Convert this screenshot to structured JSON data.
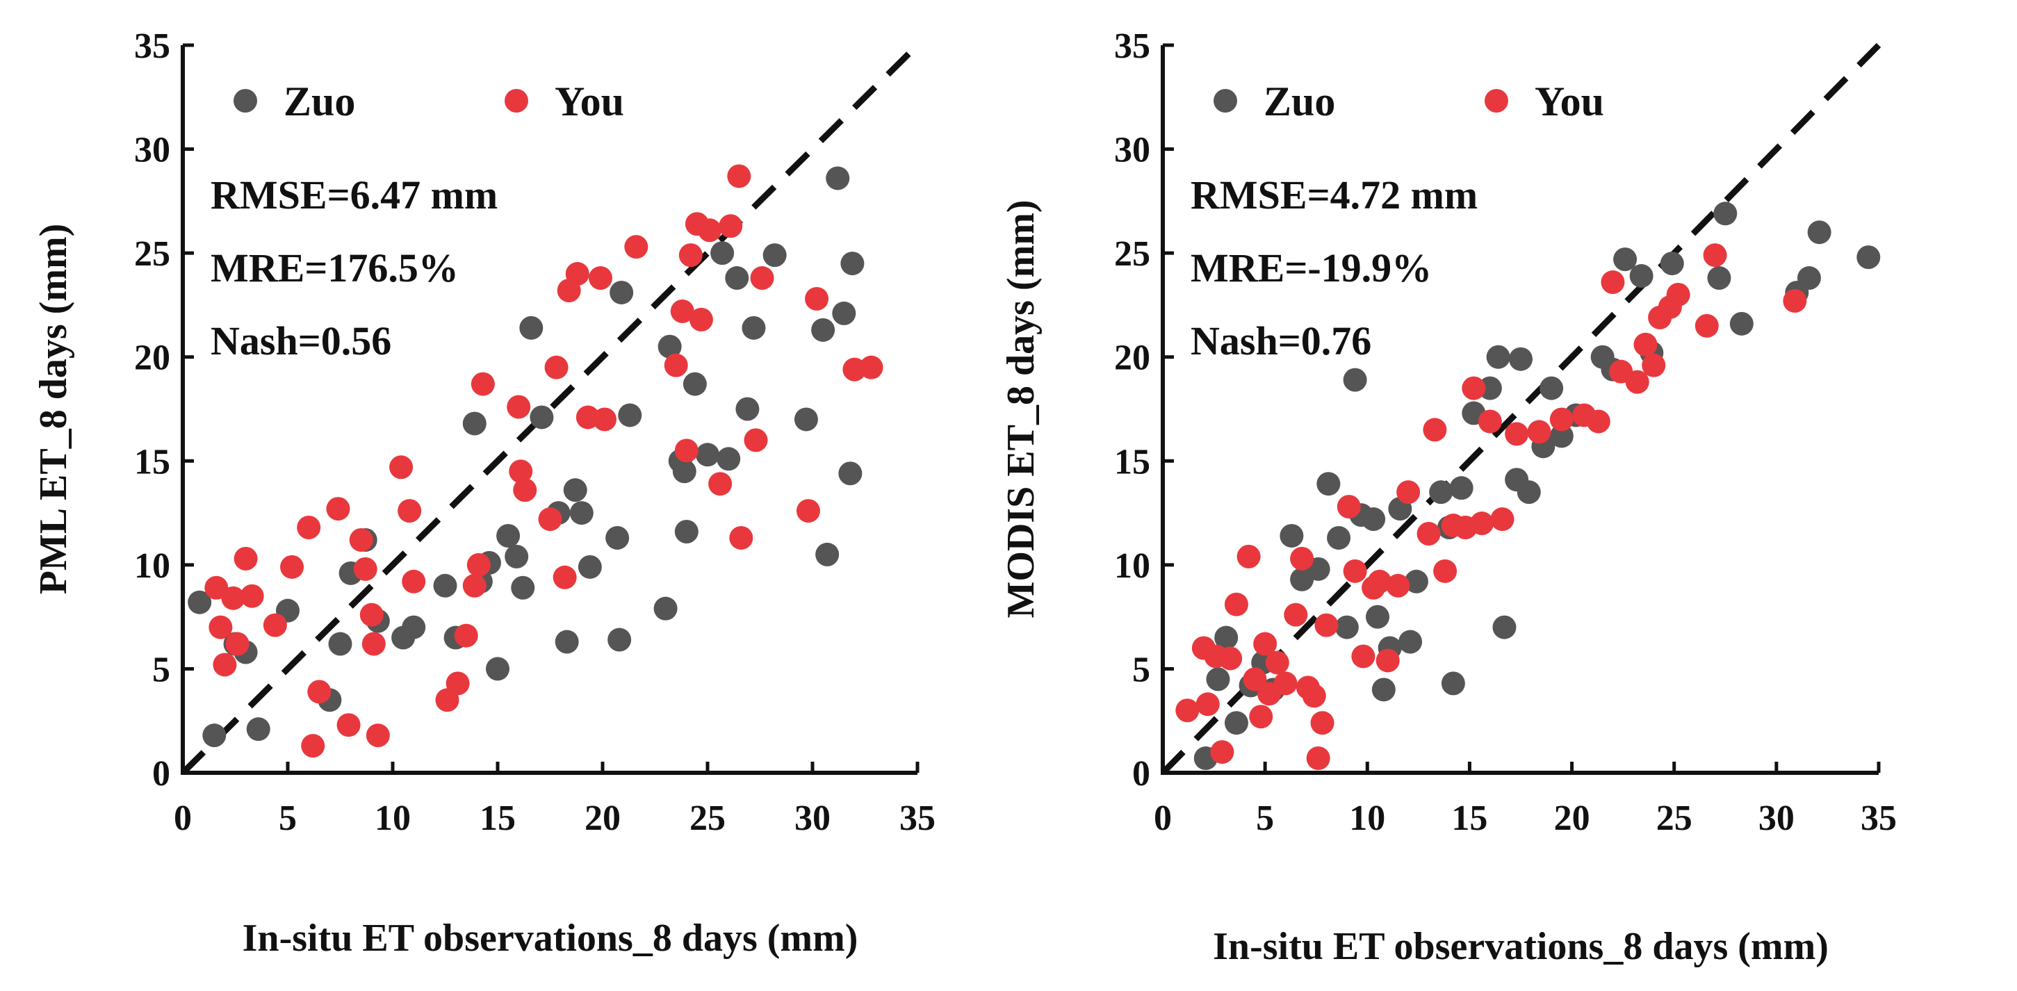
{
  "colors": {
    "zuo": "#555555",
    "you": "#e8383d",
    "axis": "#111111",
    "one_to_one": "#111111"
  },
  "chart_data": [
    {
      "type": "scatter",
      "xlabel": "In-situ ET observations_8 days (mm)",
      "ylabel": "PML ET_8 days  (mm)",
      "xlim": [
        0,
        35
      ],
      "ylim": [
        0,
        35
      ],
      "xticks": [
        0,
        5,
        10,
        15,
        20,
        25,
        30,
        35
      ],
      "yticks": [
        0,
        5,
        10,
        15,
        20,
        25,
        30,
        35
      ],
      "one_to_one_line": true,
      "legend": [
        "Zuo",
        "You"
      ],
      "stats": [
        "RMSE=6.47 mm",
        "MRE=176.5%",
        "Nash=0.56"
      ],
      "series": [
        {
          "name": "Zuo",
          "x": [
            0.8,
            1.5,
            2.5,
            3.0,
            3.6,
            5.0,
            7.0,
            7.5,
            8.0,
            8.7,
            9.3,
            10.5,
            11.0,
            12.5,
            13.0,
            13.9,
            14.2,
            14.6,
            15.0,
            15.5,
            15.9,
            16.2,
            16.6,
            17.1,
            17.9,
            18.3,
            18.7,
            19.0,
            19.4,
            20.7,
            20.8,
            20.9,
            21.3,
            23.0,
            23.2,
            23.7,
            23.9,
            24.0,
            24.4,
            25.0,
            25.7,
            26.0,
            26.4,
            26.9,
            27.2,
            28.2,
            29.7,
            30.5,
            30.7,
            31.2,
            31.5,
            31.8,
            31.9
          ],
          "y": [
            8.2,
            1.8,
            6.2,
            5.8,
            2.1,
            7.8,
            3.5,
            6.2,
            9.6,
            11.2,
            7.3,
            6.5,
            7.0,
            9.0,
            6.5,
            16.8,
            9.2,
            10.1,
            5.0,
            11.4,
            10.4,
            8.9,
            21.4,
            17.1,
            12.5,
            6.3,
            13.6,
            12.5,
            9.9,
            11.3,
            6.4,
            23.1,
            17.2,
            7.9,
            20.5,
            15.0,
            14.5,
            11.6,
            18.7,
            15.3,
            25.0,
            15.1,
            23.8,
            17.5,
            21.4,
            24.9,
            17.0,
            21.3,
            10.5,
            28.6,
            22.1,
            14.4,
            24.5
          ]
        },
        {
          "name": "You",
          "x": [
            1.6,
            1.8,
            2.0,
            2.4,
            2.6,
            3.0,
            3.3,
            4.4,
            5.2,
            6.0,
            6.2,
            6.5,
            7.4,
            7.9,
            8.5,
            8.7,
            9.0,
            9.1,
            9.3,
            10.4,
            10.8,
            11.0,
            12.6,
            13.1,
            13.5,
            13.9,
            14.1,
            14.3,
            16.0,
            16.1,
            16.3,
            17.5,
            17.8,
            18.2,
            18.4,
            18.8,
            19.3,
            19.9,
            20.1,
            21.6,
            23.5,
            23.8,
            24.0,
            24.2,
            24.5,
            24.7,
            25.1,
            25.6,
            26.1,
            26.5,
            26.6,
            27.3,
            27.6,
            29.8,
            30.2,
            32.0,
            32.8
          ],
          "y": [
            8.9,
            7.0,
            5.2,
            8.4,
            6.2,
            10.3,
            8.5,
            7.1,
            9.9,
            11.8,
            1.3,
            3.9,
            12.7,
            2.3,
            11.2,
            9.8,
            7.6,
            6.2,
            1.8,
            14.7,
            12.6,
            9.2,
            3.5,
            4.3,
            6.6,
            9.0,
            10.0,
            18.7,
            17.6,
            14.5,
            13.6,
            12.2,
            19.5,
            9.4,
            23.2,
            24.0,
            17.1,
            23.8,
            17.0,
            25.3,
            19.6,
            22.2,
            15.5,
            24.9,
            26.4,
            21.8,
            26.1,
            13.9,
            26.3,
            28.7,
            11.3,
            16.0,
            23.8,
            12.6,
            22.8,
            19.4,
            19.5
          ]
        }
      ]
    },
    {
      "type": "scatter",
      "xlabel": "In-situ ET observations_8 days (mm)",
      "ylabel": "MODIS ET_8 days (mm)",
      "xlim": [
        0,
        35
      ],
      "ylim": [
        0,
        35
      ],
      "xticks": [
        0,
        5,
        10,
        15,
        20,
        25,
        30,
        35
      ],
      "yticks": [
        0,
        5,
        10,
        15,
        20,
        25,
        30,
        35
      ],
      "one_to_one_line": true,
      "legend": [
        "Zuo",
        "You"
      ],
      "stats": [
        "RMSE=4.72 mm",
        "MRE=-19.9%",
        "Nash=0.76"
      ],
      "series": [
        {
          "name": "Zuo",
          "x": [
            2.1,
            2.7,
            3.1,
            3.6,
            4.3,
            4.9,
            5.4,
            6.3,
            6.8,
            7.6,
            8.1,
            8.6,
            9.0,
            9.4,
            9.7,
            10.3,
            10.5,
            10.8,
            11.1,
            11.6,
            12.1,
            12.4,
            13.6,
            14.0,
            14.2,
            14.6,
            15.2,
            16.0,
            16.4,
            16.7,
            17.3,
            17.5,
            17.9,
            18.6,
            19.0,
            19.5,
            20.2,
            21.5,
            22.0,
            22.6,
            23.4,
            23.9,
            24.9,
            27.2,
            27.5,
            28.3,
            31.0,
            31.6,
            32.1,
            34.5
          ],
          "y": [
            0.7,
            4.5,
            6.5,
            2.4,
            4.2,
            5.3,
            4.0,
            11.4,
            9.3,
            9.8,
            13.9,
            11.3,
            7.0,
            18.9,
            12.4,
            12.2,
            7.5,
            4.0,
            6.0,
            12.7,
            6.3,
            9.2,
            13.5,
            11.8,
            4.3,
            13.7,
            17.3,
            18.5,
            20.0,
            7.0,
            14.1,
            19.9,
            13.5,
            15.7,
            18.5,
            16.2,
            17.2,
            20.0,
            19.4,
            24.7,
            23.9,
            20.2,
            24.5,
            23.8,
            26.9,
            21.6,
            23.1,
            23.8,
            26.0,
            24.8
          ]
        },
        {
          "name": "You",
          "x": [
            1.2,
            2.0,
            2.2,
            2.6,
            2.9,
            3.3,
            3.6,
            4.2,
            4.5,
            4.8,
            5.0,
            5.2,
            5.6,
            6.0,
            6.5,
            6.8,
            7.1,
            7.4,
            7.6,
            7.8,
            8.0,
            9.1,
            9.4,
            9.8,
            10.3,
            10.6,
            11.0,
            11.5,
            12.0,
            13.0,
            13.3,
            13.8,
            14.2,
            14.8,
            15.2,
            15.6,
            16.0,
            16.6,
            17.3,
            18.4,
            19.5,
            20.6,
            21.3,
            22.0,
            22.4,
            23.2,
            23.6,
            24.0,
            24.3,
            24.8,
            25.2,
            26.6,
            27.0,
            30.9
          ],
          "y": [
            3.0,
            6.0,
            3.3,
            5.6,
            1.0,
            5.5,
            8.1,
            10.4,
            4.5,
            2.7,
            6.2,
            3.8,
            5.3,
            4.3,
            7.6,
            10.3,
            4.1,
            3.7,
            0.7,
            2.4,
            7.1,
            12.8,
            9.7,
            5.6,
            8.9,
            9.2,
            5.4,
            9.0,
            13.5,
            11.5,
            16.5,
            9.7,
            11.9,
            11.8,
            18.5,
            12.0,
            16.9,
            12.2,
            16.3,
            16.4,
            17.0,
            17.2,
            16.9,
            23.6,
            19.3,
            18.8,
            20.6,
            19.6,
            21.9,
            22.4,
            23.0,
            21.5,
            24.9,
            22.7
          ]
        }
      ]
    }
  ]
}
